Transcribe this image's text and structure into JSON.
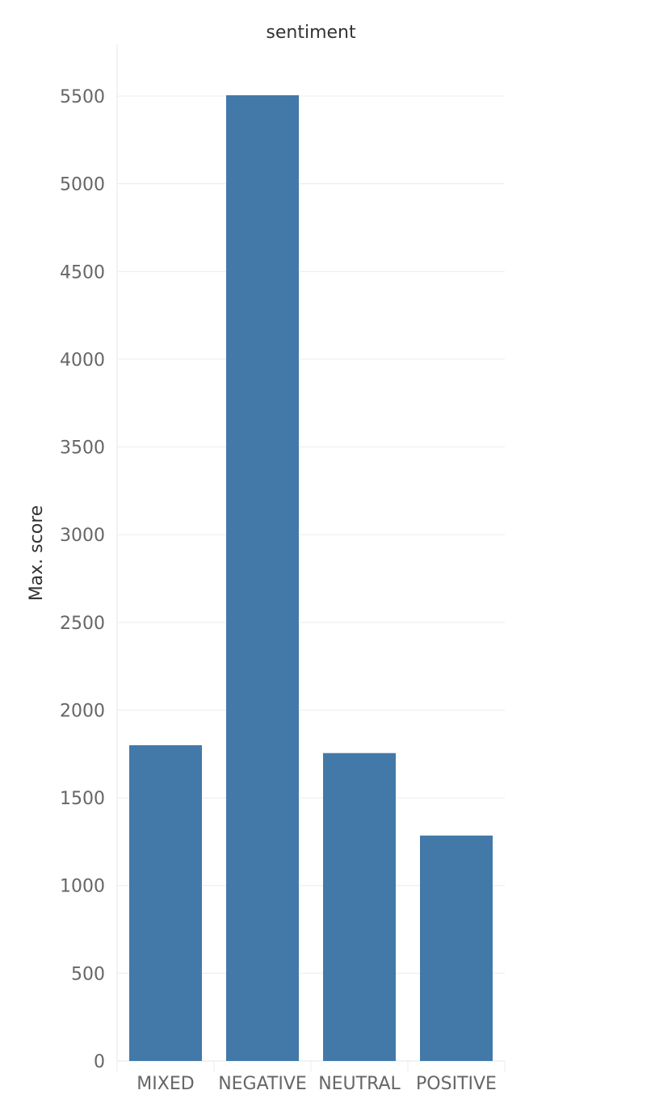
{
  "chart_data": {
    "type": "bar",
    "title": "sentiment",
    "xlabel": "",
    "ylabel": "Max. score",
    "categories": [
      "MIXED",
      "NEGATIVE",
      "NEUTRAL",
      "POSITIVE"
    ],
    "values": [
      1800,
      5505,
      1755,
      1285
    ],
    "ylim": [
      0,
      5500
    ],
    "yticks": [
      0,
      500,
      1000,
      1500,
      2000,
      2500,
      3000,
      3500,
      4000,
      4500,
      5000,
      5500
    ],
    "grid": true,
    "legend": "none",
    "bar_color": "#4379a9"
  }
}
